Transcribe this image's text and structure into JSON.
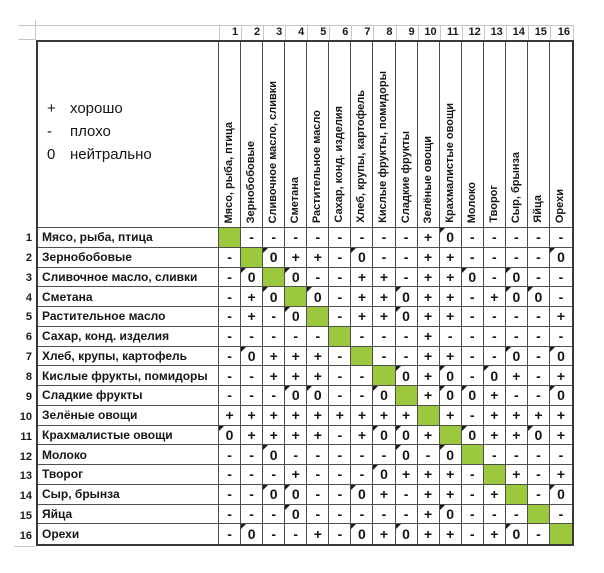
{
  "legend": {
    "items": [
      {
        "symbol": "+",
        "label": "хорошо"
      },
      {
        "symbol": "-",
        "label": "плохо"
      },
      {
        "symbol": "0",
        "label": "нейтрально"
      }
    ]
  },
  "spreadsheet": {
    "column_numbers": [
      "1",
      "2",
      "3",
      "4",
      "5",
      "6",
      "7",
      "8",
      "9",
      "10",
      "11",
      "12",
      "13",
      "14",
      "15",
      "16"
    ],
    "row_numbers": [
      "1",
      "2",
      "3",
      "4",
      "5",
      "6",
      "7",
      "8",
      "9",
      "10",
      "11",
      "12",
      "13",
      "14",
      "15",
      "16"
    ]
  },
  "chart_data": {
    "type": "table",
    "description": "Food compatibility matrix (продукты по строкам и столбцам); + хорошо, - плохо, 0 нейтрально; G = same product (green diagonal cell)",
    "categories": [
      "Мясо, рыба, птица",
      "Зернобобовые",
      "Сливочное масло, сливки",
      "Сметана",
      "Растительное масло",
      "Сахар, конд. изделия",
      "Хлеб, крупы, картофель",
      "Кислые фрукты, помидоры",
      "Сладкие фрукты",
      "Зелёные овощи",
      "Крахмалистые овощи",
      "Молоко",
      "Творог",
      "Сыр, брынза",
      "Яйца",
      "Орехи"
    ],
    "matrix": [
      [
        "G",
        "-",
        "-",
        "-",
        "-",
        "-",
        "-",
        "-",
        "-",
        "+",
        "0",
        "-",
        "-",
        "-",
        "-",
        "-"
      ],
      [
        "-",
        "G",
        "0",
        "+",
        "+",
        "-",
        "0",
        "-",
        "-",
        "+",
        "+",
        "-",
        "-",
        "-",
        "-",
        "0"
      ],
      [
        "-",
        "0",
        "G",
        "0",
        "-",
        "-",
        "+",
        "+",
        "-",
        "+",
        "+",
        "0",
        "-",
        "0",
        "-",
        "-"
      ],
      [
        "-",
        "+",
        "0",
        "G",
        "0",
        "-",
        "+",
        "+",
        "0",
        "+",
        "+",
        "-",
        "+",
        "0",
        "0",
        "-"
      ],
      [
        "-",
        "+",
        "-",
        "0",
        "G",
        "-",
        "+",
        "+",
        "0",
        "+",
        "+",
        "-",
        "-",
        "-",
        "-",
        "+"
      ],
      [
        "-",
        "-",
        "-",
        "-",
        "-",
        "G",
        "-",
        "-",
        "-",
        "+",
        "-",
        "-",
        "-",
        "-",
        "-",
        "-"
      ],
      [
        "-",
        "0",
        "+",
        "+",
        "+",
        "-",
        "G",
        "-",
        "-",
        "+",
        "+",
        "-",
        "-",
        "0",
        "-",
        "0"
      ],
      [
        "-",
        "-",
        "+",
        "+",
        "+",
        "-",
        "-",
        "G",
        "0",
        "+",
        "0",
        "-",
        "0",
        "+",
        "-",
        "+"
      ],
      [
        "-",
        "-",
        "-",
        "0",
        "0",
        "-",
        "-",
        "0",
        "G",
        "+",
        "0",
        "0",
        "+",
        "-",
        "-",
        "0"
      ],
      [
        "+",
        "+",
        "+",
        "+",
        "+",
        "+",
        "+",
        "+",
        "+",
        "G",
        "+",
        "-",
        "+",
        "+",
        "+",
        "+"
      ],
      [
        "0",
        "+",
        "+",
        "+",
        "+",
        "-",
        "+",
        "0",
        "0",
        "+",
        "G",
        "0",
        "+",
        "+",
        "0",
        "+"
      ],
      [
        "-",
        "-",
        "0",
        "-",
        "-",
        "-",
        "-",
        "-",
        "0",
        "-",
        "0",
        "G",
        "-",
        "-",
        "-",
        "-"
      ],
      [
        "-",
        "-",
        "-",
        "+",
        "-",
        "-",
        "-",
        "0",
        "+",
        "+",
        "+",
        "-",
        "G",
        "+",
        "-",
        "+"
      ],
      [
        "-",
        "-",
        "0",
        "0",
        "-",
        "-",
        "0",
        "+",
        "-",
        "+",
        "+",
        "-",
        "+",
        "G",
        "-",
        "0"
      ],
      [
        "-",
        "-",
        "-",
        "0",
        "-",
        "-",
        "-",
        "-",
        "-",
        "+",
        "0",
        "-",
        "-",
        "-",
        "G",
        "-"
      ],
      [
        "-",
        "0",
        "-",
        "-",
        "+",
        "-",
        "0",
        "+",
        "0",
        "+",
        "+",
        "-",
        "+",
        "0",
        "-",
        "G"
      ]
    ],
    "colors": {
      "self_cell_green": "#9cc83e",
      "grid_line": "#4f4f4f",
      "outer_border": "#383838",
      "faint_guide_line": "#c6c6c6"
    },
    "legend_position": "top-left cell"
  }
}
